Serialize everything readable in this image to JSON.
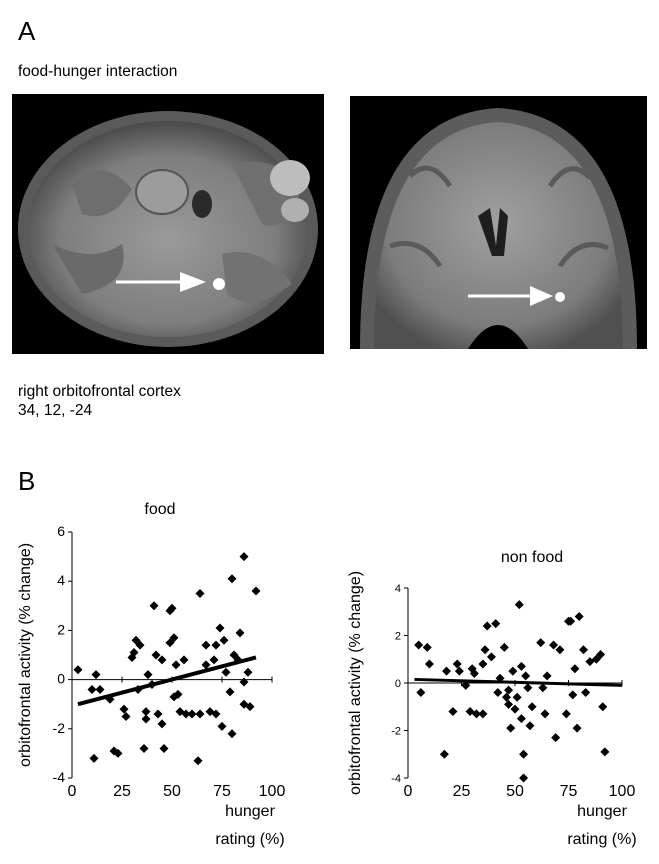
{
  "panel_a": {
    "letter": "A",
    "title": "food-hunger interaction",
    "region_label": "right orbitofrontal cortex",
    "coordinates": "34, 12, -24"
  },
  "panel_b": {
    "letter": "B"
  },
  "colors": {
    "marker": "#000000",
    "scan_background": "#000000",
    "tissue": "#8a8a8a",
    "highlight": "#ffffff"
  },
  "chart_data": [
    {
      "type": "scatter",
      "title": "food",
      "xlabel": "hunger rating (%)",
      "ylabel": "orbitofrontal activity (% change)",
      "xlim": [
        0,
        100
      ],
      "ylim": [
        -4,
        6
      ],
      "xticks": [
        0,
        25,
        50,
        75,
        100
      ],
      "yticks": [
        -4,
        -2,
        0,
        2,
        4,
        6
      ],
      "points": [
        [
          3,
          0.4
        ],
        [
          10,
          -0.4
        ],
        [
          11,
          -3.2
        ],
        [
          12,
          0.2
        ],
        [
          14,
          -0.4
        ],
        [
          19,
          -0.8
        ],
        [
          21,
          -2.9
        ],
        [
          23,
          -3.0
        ],
        [
          26,
          -1.2
        ],
        [
          27,
          -1.5
        ],
        [
          30,
          0.9
        ],
        [
          31,
          1.1
        ],
        [
          32,
          1.6
        ],
        [
          33,
          -0.4
        ],
        [
          34,
          1.4
        ],
        [
          36,
          -2.8
        ],
        [
          37,
          -1.3
        ],
        [
          37,
          -1.6
        ],
        [
          38,
          0.2
        ],
        [
          40,
          -0.2
        ],
        [
          41,
          3.0
        ],
        [
          42,
          1.0
        ],
        [
          43,
          -1.4
        ],
        [
          45,
          -1.8
        ],
        [
          45,
          0.8
        ],
        [
          46,
          -2.8
        ],
        [
          49,
          1.5
        ],
        [
          49,
          2.8
        ],
        [
          50,
          2.9
        ],
        [
          51,
          -0.7
        ],
        [
          51,
          1.7
        ],
        [
          52,
          0.6
        ],
        [
          53,
          -0.6
        ],
        [
          54,
          -1.3
        ],
        [
          56,
          0.8
        ],
        [
          57,
          -1.4
        ],
        [
          60,
          -1.4
        ],
        [
          63,
          -3.3
        ],
        [
          64,
          3.5
        ],
        [
          64,
          -1.4
        ],
        [
          67,
          1.4
        ],
        [
          67,
          0.6
        ],
        [
          69,
          -1.3
        ],
        [
          71,
          0.8
        ],
        [
          72,
          -1.4
        ],
        [
          72,
          1.4
        ],
        [
          74,
          2.1
        ],
        [
          75,
          -1.9
        ],
        [
          76,
          1.6
        ],
        [
          77,
          0.3
        ],
        [
          79,
          -0.5
        ],
        [
          80,
          4.1
        ],
        [
          80,
          -2.2
        ],
        [
          81,
          1.0
        ],
        [
          83,
          0.8
        ],
        [
          84,
          1.9
        ],
        [
          86,
          5.0
        ],
        [
          86,
          -0.1
        ],
        [
          86,
          -1.0
        ],
        [
          88,
          0.3
        ],
        [
          89,
          -1.1
        ],
        [
          92,
          3.6
        ]
      ],
      "fit_line": {
        "x": [
          3,
          92
        ],
        "y": [
          -1.0,
          0.9
        ]
      }
    },
    {
      "type": "scatter",
      "title": "non food",
      "xlabel": "hunger rating (%)",
      "ylabel": "orbitofrontal activity (% change)",
      "xlim": [
        0,
        100
      ],
      "ylim": [
        -4,
        4
      ],
      "xticks": [
        0,
        25,
        50,
        75,
        100
      ],
      "yticks": [
        -4,
        -2,
        0,
        2,
        4
      ],
      "points": [
        [
          5,
          1.6
        ],
        [
          6,
          -0.4
        ],
        [
          9,
          1.5
        ],
        [
          10,
          0.8
        ],
        [
          17,
          -3.0
        ],
        [
          18,
          0.5
        ],
        [
          21,
          -1.2
        ],
        [
          23,
          0.8
        ],
        [
          24,
          0.5
        ],
        [
          27,
          -0.1
        ],
        [
          29,
          -1.2
        ],
        [
          30,
          0.6
        ],
        [
          31,
          0.4
        ],
        [
          32,
          -1.3
        ],
        [
          35,
          -1.3
        ],
        [
          35,
          0.8
        ],
        [
          36,
          1.4
        ],
        [
          37,
          2.4
        ],
        [
          39,
          1.1
        ],
        [
          41,
          2.5
        ],
        [
          42,
          -0.4
        ],
        [
          43,
          0.2
        ],
        [
          45,
          1.5
        ],
        [
          46,
          -0.6
        ],
        [
          47,
          -0.3
        ],
        [
          47,
          -0.9
        ],
        [
          48,
          -1.9
        ],
        [
          49,
          0.5
        ],
        [
          50,
          -1.1
        ],
        [
          51,
          -0.6
        ],
        [
          52,
          3.3
        ],
        [
          53,
          0.7
        ],
        [
          53,
          -1.5
        ],
        [
          54,
          -3.0
        ],
        [
          54,
          -4.0
        ],
        [
          55,
          0.3
        ],
        [
          56,
          -0.2
        ],
        [
          57,
          -1.8
        ],
        [
          58,
          -1.0
        ],
        [
          62,
          1.7
        ],
        [
          63,
          -0.2
        ],
        [
          64,
          -1.3
        ],
        [
          65,
          0.3
        ],
        [
          68,
          1.6
        ],
        [
          69,
          -2.3
        ],
        [
          71,
          1.4
        ],
        [
          74,
          -1.3
        ],
        [
          75,
          2.6
        ],
        [
          76,
          2.6
        ],
        [
          77,
          -0.5
        ],
        [
          78,
          0.6
        ],
        [
          79,
          -1.9
        ],
        [
          80,
          2.8
        ],
        [
          82,
          1.4
        ],
        [
          83,
          -0.4
        ],
        [
          85,
          0.9
        ],
        [
          88,
          1.0
        ],
        [
          90,
          1.2
        ],
        [
          91,
          -1.0
        ],
        [
          92,
          -2.9
        ]
      ],
      "fit_line": {
        "x": [
          3,
          100
        ],
        "y": [
          0.15,
          -0.1
        ]
      }
    }
  ]
}
